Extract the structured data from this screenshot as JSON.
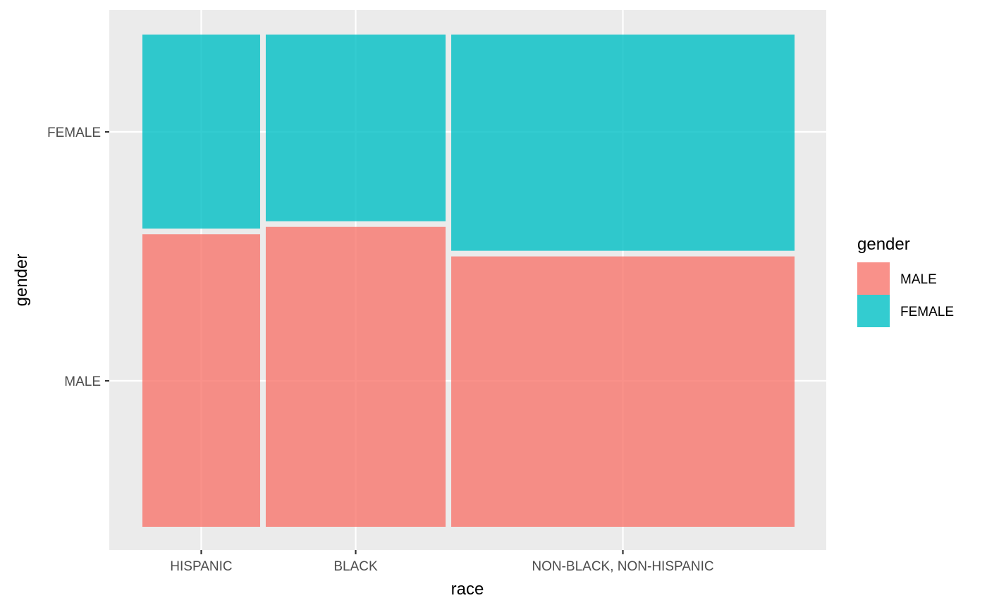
{
  "chart_data": {
    "type": "mosaic",
    "xlabel": "race",
    "ylabel": "gender",
    "categories": [
      "HISPANIC",
      "BLACK",
      "NON-BLACK, NON-HISPANIC"
    ],
    "category_widths": [
      0.18,
      0.275,
      0.525
    ],
    "y_ticks": [
      "MALE",
      "FEMALE"
    ],
    "series": [
      {
        "name": "MALE",
        "color": "#F8766D",
        "proportions": [
          0.6,
          0.615,
          0.555
        ]
      },
      {
        "name": "FEMALE",
        "color": "#00BFC4",
        "proportions": [
          0.4,
          0.385,
          0.445
        ]
      }
    ],
    "legend": {
      "title": "gender",
      "position": "right",
      "items": [
        "MALE",
        "FEMALE"
      ]
    },
    "grid": true,
    "panel_background": "#EBEBEB"
  }
}
